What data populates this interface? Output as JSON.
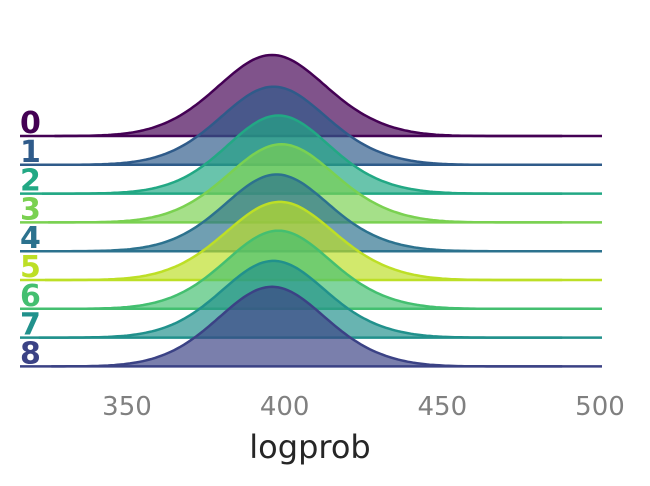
{
  "chart_data": {
    "type": "area",
    "title": "",
    "xlabel": "logprob",
    "ylabel": "",
    "xlim": [
      317,
      505
    ],
    "x_ticks": [
      350,
      400,
      450,
      500
    ],
    "x_tick_labels": [
      "350",
      "400",
      "450",
      "500"
    ],
    "grid": false,
    "legend": "none",
    "series": [
      {
        "name": "0",
        "color": "#440154",
        "fill_opacity": 0.68,
        "mean": 396.0,
        "sd": 16.6,
        "peak": 112,
        "x_min": 327,
        "x_max": 488
      },
      {
        "name": "1",
        "color": "#2f5b8a",
        "fill_opacity": 0.68,
        "mean": 396.5,
        "sd": 16.2,
        "peak": 108,
        "x_min": 329,
        "x_max": 489
      },
      {
        "name": "2",
        "color": "#22a884",
        "fill_opacity": 0.68,
        "mean": 398.0,
        "sd": 15.8,
        "peak": 108,
        "x_min": 323,
        "x_max": 488
      },
      {
        "name": "3",
        "color": "#7ad151",
        "fill_opacity": 0.68,
        "mean": 399.0,
        "sd": 16.4,
        "peak": 108,
        "x_min": 325,
        "x_max": 488
      },
      {
        "name": "4",
        "color": "#2c728e",
        "fill_opacity": 0.68,
        "mean": 397.5,
        "sd": 16.0,
        "peak": 106,
        "x_min": 322,
        "x_max": 489
      },
      {
        "name": "5",
        "color": "#bddf26",
        "fill_opacity": 0.68,
        "mean": 398.5,
        "sd": 16.6,
        "peak": 108,
        "x_min": 324,
        "x_max": 488
      },
      {
        "name": "6",
        "color": "#44bf70",
        "fill_opacity": 0.68,
        "mean": 398.0,
        "sd": 16.2,
        "peak": 108,
        "x_min": 323,
        "x_max": 492
      },
      {
        "name": "7",
        "color": "#21918c",
        "fill_opacity": 0.68,
        "mean": 396.5,
        "sd": 16.0,
        "peak": 106,
        "x_min": 322,
        "x_max": 488
      },
      {
        "name": "8",
        "color": "#3b4285",
        "fill_opacity": 0.68,
        "mean": 396.0,
        "sd": 16.4,
        "peak": 110,
        "x_min": 326,
        "x_max": 488
      }
    ]
  }
}
